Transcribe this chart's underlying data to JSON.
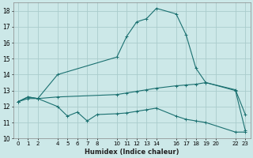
{
  "xlabel": "Humidex (Indice chaleur)",
  "bg_color": "#cce8e8",
  "grid_color": "#aacccc",
  "line_color": "#1a7070",
  "xlim": [
    -0.5,
    23.5
  ],
  "ylim": [
    10,
    18.5
  ],
  "yticks": [
    10,
    11,
    12,
    13,
    14,
    15,
    16,
    17,
    18
  ],
  "xtick_positions": [
    0,
    1,
    2,
    4,
    5,
    6,
    7,
    8,
    10,
    11,
    12,
    13,
    14,
    16,
    17,
    18,
    19,
    20,
    22,
    23
  ],
  "xtick_labels": [
    "0",
    "1",
    "2",
    "4",
    "5",
    "6",
    "7",
    "8",
    "10",
    "11",
    "12",
    "13",
    "14",
    "16",
    "17",
    "18",
    "19",
    "20",
    "22",
    "23"
  ],
  "series": [
    {
      "x": [
        0,
        1,
        2,
        4,
        10,
        11,
        12,
        13,
        14,
        16,
        17,
        18,
        19,
        22,
        23
      ],
      "y": [
        12.3,
        12.6,
        12.5,
        14.0,
        15.1,
        16.4,
        17.3,
        17.5,
        18.15,
        17.8,
        16.5,
        14.4,
        13.5,
        13.05,
        11.5
      ]
    },
    {
      "x": [
        0,
        1,
        2,
        4,
        10,
        11,
        12,
        13,
        14,
        16,
        17,
        18,
        19,
        22,
        23
      ],
      "y": [
        12.3,
        12.5,
        12.5,
        12.6,
        12.75,
        12.85,
        12.95,
        13.05,
        13.15,
        13.3,
        13.35,
        13.4,
        13.5,
        13.0,
        10.5
      ]
    },
    {
      "x": [
        0,
        1,
        2,
        4,
        5,
        6,
        7,
        8,
        10,
        11,
        12,
        13,
        14,
        16,
        17,
        18,
        19,
        22,
        23
      ],
      "y": [
        12.3,
        12.6,
        12.5,
        12.0,
        11.4,
        11.65,
        11.1,
        11.5,
        11.55,
        11.6,
        11.7,
        11.8,
        11.9,
        11.4,
        11.2,
        11.1,
        11.0,
        10.4,
        10.4
      ]
    }
  ]
}
